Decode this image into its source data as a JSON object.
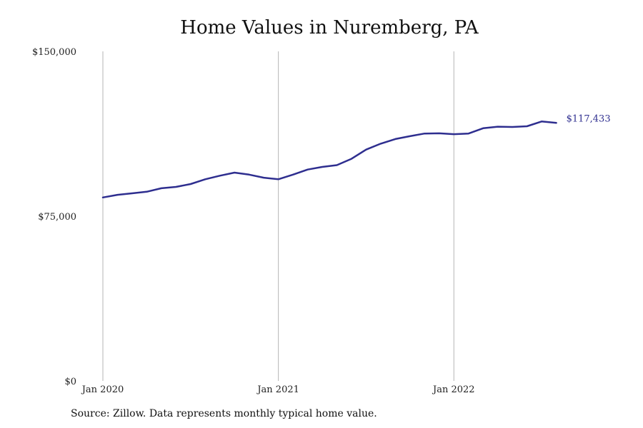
{
  "chart_data": {
    "type": "line",
    "title": "Home Values in Nuremberg, PA",
    "xlabel": "",
    "ylabel": "",
    "ylim": [
      0,
      150000
    ],
    "y_ticks": [
      0,
      75000,
      150000
    ],
    "y_tick_labels": [
      "$0",
      "$75,000",
      "$150,000"
    ],
    "x_ticks": [
      "2020-01",
      "2021-01",
      "2022-01"
    ],
    "x_tick_labels": [
      "Jan 2020",
      "Jan 2021",
      "Jan 2022"
    ],
    "grid": "vertical lines at x ticks",
    "line_color": "#2e2e8f",
    "end_label": "$117,433",
    "series": [
      {
        "x": [
          "2020-01",
          "2020-02",
          "2020-03",
          "2020-04",
          "2020-05",
          "2020-06",
          "2020-07",
          "2020-08",
          "2020-09",
          "2020-10",
          "2020-11",
          "2020-12",
          "2021-01",
          "2021-02",
          "2021-03",
          "2021-04",
          "2021-05",
          "2021-06",
          "2021-07",
          "2021-08",
          "2021-09",
          "2021-10",
          "2021-11",
          "2021-12",
          "2022-01",
          "2022-02",
          "2022-03",
          "2022-04",
          "2022-05",
          "2022-06",
          "2022-07",
          "2022-08"
        ],
        "values": [
          83500,
          84700,
          85400,
          86100,
          87700,
          88300,
          89600,
          91800,
          93400,
          94800,
          93900,
          92500,
          91800,
          93900,
          96200,
          97400,
          98200,
          101100,
          105300,
          108000,
          110100,
          111400,
          112600,
          112700,
          112300,
          112600,
          115000,
          115700,
          115600,
          115900,
          118100,
          117433
        ]
      }
    ]
  },
  "source_note": "Source: Zillow. Data represents monthly typical home value."
}
